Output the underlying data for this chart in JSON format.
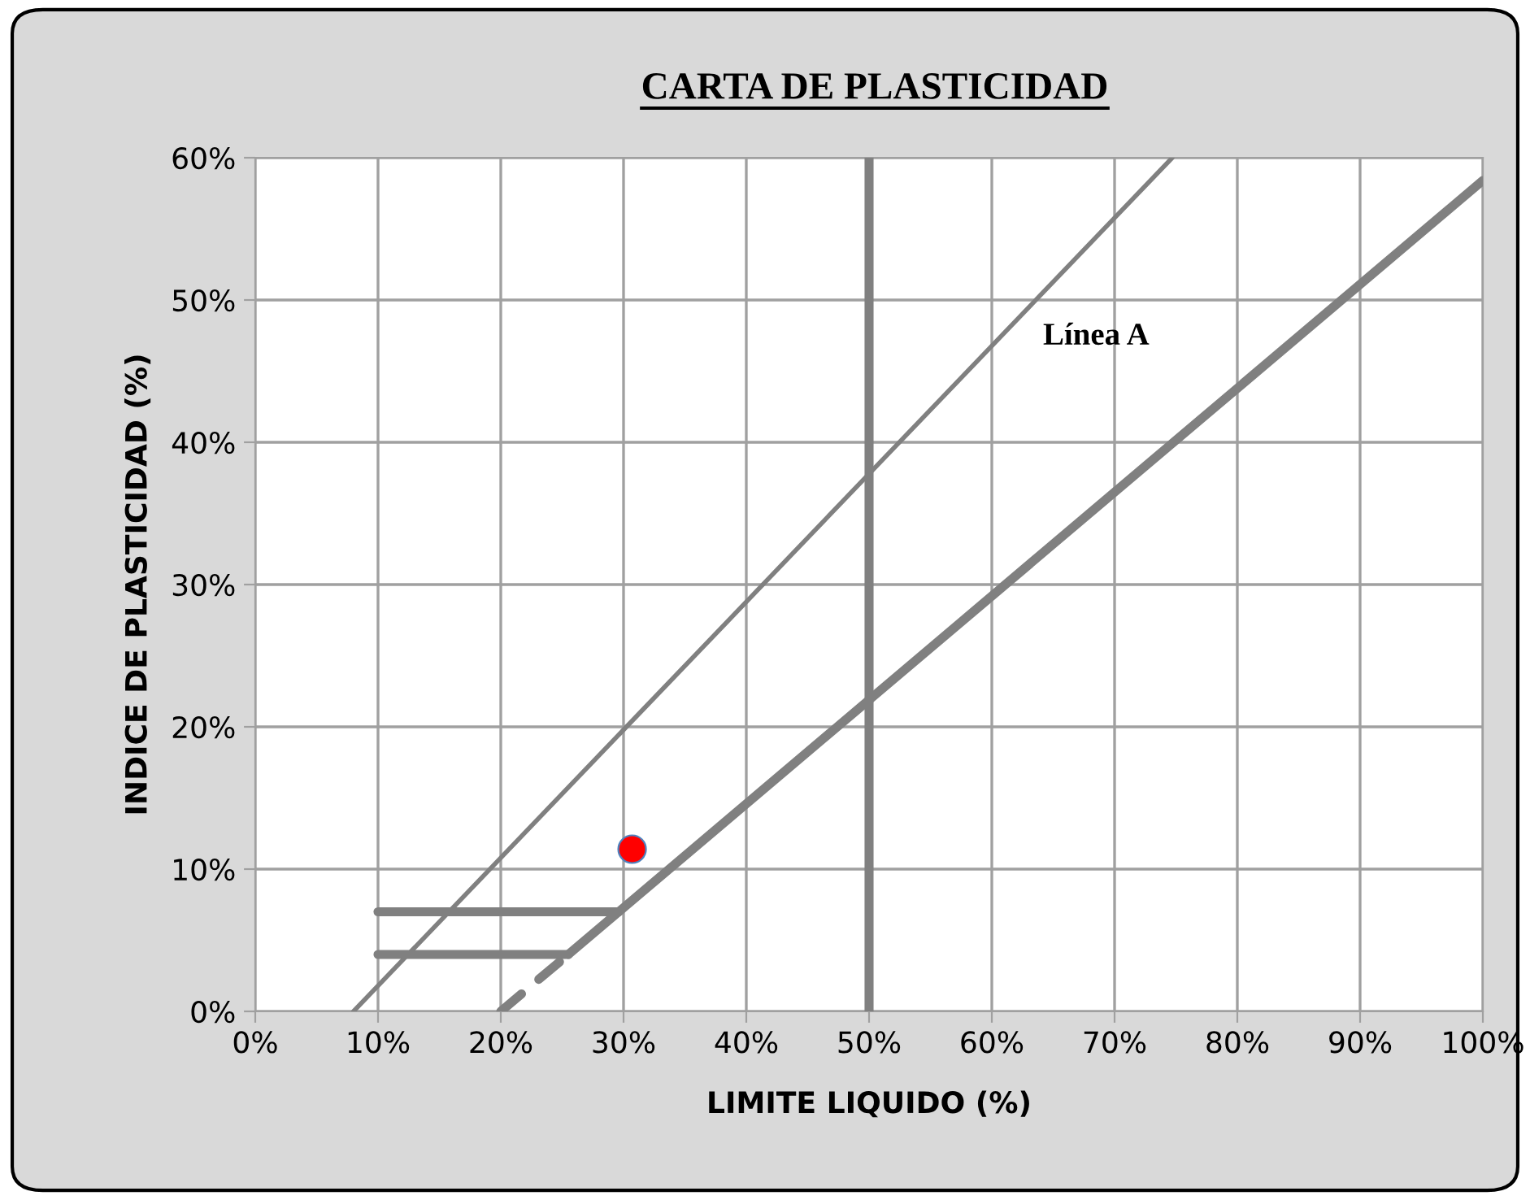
{
  "chart_data": {
    "type": "line",
    "title": "CARTA DE PLASTICIDAD",
    "xlabel": "LIMITE LIQUIDO (%)",
    "ylabel": "INDICE DE PLASTICIDAD (%)",
    "xlim": [
      0,
      100
    ],
    "ylim": [
      0,
      60
    ],
    "xticks": [
      {
        "value": 0,
        "label": "0%"
      },
      {
        "value": 10,
        "label": "10%"
      },
      {
        "value": 20,
        "label": "20%"
      },
      {
        "value": 30,
        "label": "30%"
      },
      {
        "value": 40,
        "label": "40%"
      },
      {
        "value": 50,
        "label": "50%"
      },
      {
        "value": 60,
        "label": "60%"
      },
      {
        "value": 70,
        "label": "70%"
      },
      {
        "value": 80,
        "label": "80%"
      },
      {
        "value": 90,
        "label": "90%"
      },
      {
        "value": 100,
        "label": "100%"
      }
    ],
    "yticks": [
      {
        "value": 0,
        "label": "0%"
      },
      {
        "value": 10,
        "label": "10%"
      },
      {
        "value": 20,
        "label": "20%"
      },
      {
        "value": 30,
        "label": "30%"
      },
      {
        "value": 40,
        "label": "40%"
      },
      {
        "value": 50,
        "label": "50%"
      },
      {
        "value": 60,
        "label": "60%"
      }
    ],
    "grid": true,
    "series": [
      {
        "color": "#808080",
        "x": [
          8,
          74.7
        ],
        "values": [
          0,
          60
        ]
      },
      {
        "color": "#808080",
        "line_style": "dashed",
        "x": [
          20,
          25.5
        ],
        "values": [
          0,
          4
        ]
      },
      {
        "color": "#808080",
        "x": [
          25.5,
          100
        ],
        "values": [
          4,
          58.4
        ]
      },
      {
        "color": "#808080",
        "x": [
          10,
          29.6
        ],
        "values": [
          7,
          7
        ]
      },
      {
        "color": "#808080",
        "x": [
          10,
          25.5
        ],
        "values": [
          4,
          4
        ]
      },
      {
        "type": "scatter",
        "color": "#ff0000",
        "marker": "circle",
        "x": [
          30.7
        ],
        "values": [
          11.4
        ]
      }
    ],
    "ref_lines": [
      {
        "axis": "x",
        "value": 50,
        "color": "#808080"
      }
    ],
    "annotations": [
      "Línea A"
    ]
  }
}
